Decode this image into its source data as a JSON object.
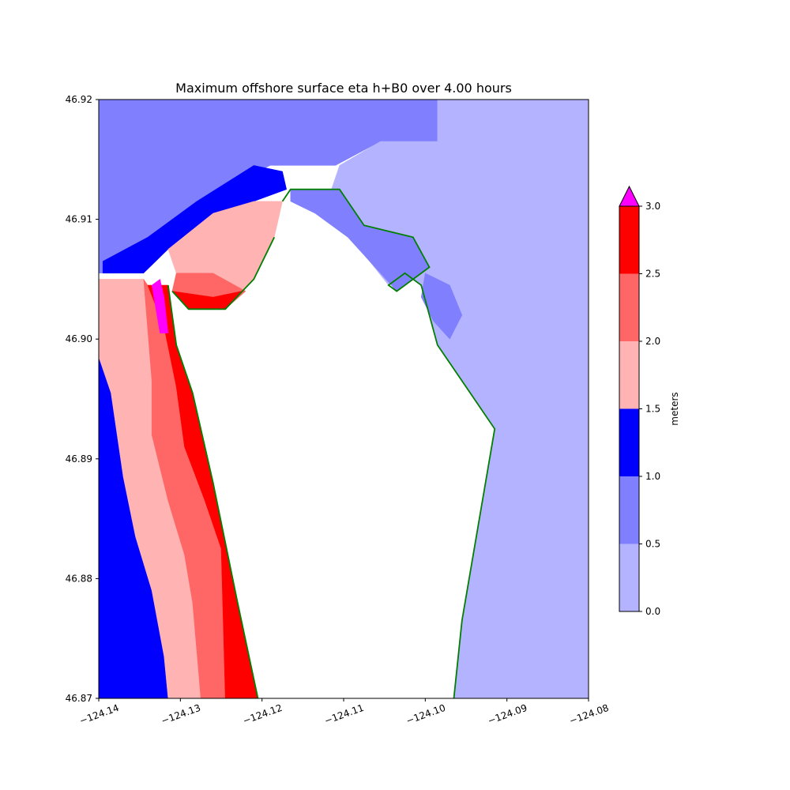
{
  "chart_data": {
    "type": "heatmap",
    "title": "Maximum offshore surface eta h+B0 over 4.00 hours",
    "xlabel": "",
    "ylabel": "",
    "xlim": [
      -124.14,
      -124.08
    ],
    "ylim": [
      46.87,
      46.92
    ],
    "x_ticks": [
      {
        "value": -124.14,
        "label": "−124.14"
      },
      {
        "value": -124.13,
        "label": "−124.13"
      },
      {
        "value": -124.12,
        "label": "−124.12"
      },
      {
        "value": -124.11,
        "label": "−124.11"
      },
      {
        "value": -124.1,
        "label": "−124.10"
      },
      {
        "value": -124.09,
        "label": "−124.09"
      },
      {
        "value": -124.08,
        "label": "−124.08"
      }
    ],
    "y_ticks": [
      {
        "value": 46.92,
        "label": "46.92"
      },
      {
        "value": 46.91,
        "label": "46.91"
      },
      {
        "value": 46.9,
        "label": "46.90"
      },
      {
        "value": 46.89,
        "label": "46.89"
      },
      {
        "value": 46.88,
        "label": "46.88"
      },
      {
        "value": 46.87,
        "label": "46.87"
      }
    ],
    "grid": false,
    "colorbar": {
      "label": "meters",
      "extend": "max",
      "over_color": "#ff00ff",
      "levels": [
        {
          "from": 0.0,
          "to": 0.5,
          "color": "#b3b3ff"
        },
        {
          "from": 0.5,
          "to": 1.0,
          "color": "#8080ff"
        },
        {
          "from": 1.0,
          "to": 1.5,
          "color": "#0000ff"
        },
        {
          "from": 1.5,
          "to": 2.0,
          "color": "#ffb3b3"
        },
        {
          "from": 2.0,
          "to": 2.5,
          "color": "#ff6666"
        },
        {
          "from": 2.5,
          "to": 3.0,
          "color": "#ff0000"
        }
      ],
      "tick_labels": [
        {
          "value": 0.0,
          "label": "0.0"
        },
        {
          "value": 0.5,
          "label": "0.5"
        },
        {
          "value": 1.0,
          "label": "1.0"
        },
        {
          "value": 1.5,
          "label": "1.5"
        },
        {
          "value": 2.0,
          "label": "2.0"
        },
        {
          "value": 2.5,
          "label": "2.5"
        },
        {
          "value": 3.0,
          "label": "3.0"
        }
      ]
    },
    "shoreline_color": "#007f00",
    "regions": [
      {
        "name": "deep-offshore",
        "level": 0.5,
        "color": "#8080ff",
        "points": [
          [
            -124.14,
            46.92
          ],
          [
            -124.0985,
            46.92
          ],
          [
            -124.0985,
            46.9165
          ],
          [
            -124.1055,
            46.9165
          ],
          [
            -124.111,
            46.9145
          ],
          [
            -124.119,
            46.9145
          ],
          [
            -124.125,
            46.9125
          ],
          [
            -124.1315,
            46.9085
          ],
          [
            -124.138,
            46.9055
          ],
          [
            -124.14,
            46.9055
          ]
        ]
      },
      {
        "name": "northeast-shelf",
        "level": 0.0,
        "color": "#b3b3ff",
        "points": [
          [
            -124.0985,
            46.92
          ],
          [
            -124.08,
            46.92
          ],
          [
            -124.08,
            46.87
          ],
          [
            -124.0965,
            46.87
          ],
          [
            -124.0955,
            46.8765
          ],
          [
            -124.0915,
            46.8925
          ],
          [
            -124.0945,
            46.8955
          ],
          [
            -124.0985,
            46.8995
          ],
          [
            -124.1005,
            46.9045
          ],
          [
            -124.1025,
            46.9055
          ],
          [
            -124.1045,
            46.9045
          ],
          [
            -124.108,
            46.9075
          ],
          [
            -124.1095,
            46.9105
          ],
          [
            -124.1105,
            46.9115
          ],
          [
            -124.1115,
            46.9125
          ],
          [
            -124.1105,
            46.9145
          ],
          [
            -124.1055,
            46.9165
          ],
          [
            -124.0985,
            46.9165
          ]
        ]
      },
      {
        "name": "bay-mouth-band",
        "level": 0.5,
        "color": "#8080ff",
        "points": [
          [
            -124.1165,
            46.9125
          ],
          [
            -124.1105,
            46.9125
          ],
          [
            -124.1075,
            46.9095
          ],
          [
            -124.1015,
            46.9085
          ],
          [
            -124.0995,
            46.906
          ],
          [
            -124.1035,
            46.904
          ],
          [
            -124.1055,
            46.9055
          ],
          [
            -124.1095,
            46.9085
          ],
          [
            -124.1135,
            46.9105
          ],
          [
            -124.1165,
            46.9115
          ]
        ]
      },
      {
        "name": "bay-inner-arm",
        "level": 0.5,
        "color": "#8080ff",
        "points": [
          [
            -124.1,
            46.9055
          ],
          [
            -124.097,
            46.9045
          ],
          [
            -124.0955,
            46.902
          ],
          [
            -124.097,
            46.9
          ],
          [
            -124.099,
            46.9015
          ],
          [
            -124.1005,
            46.9035
          ]
        ]
      },
      {
        "name": "offshore-band-1-0",
        "level": 1.0,
        "color": "#0000ff",
        "points": [
          [
            -124.1395,
            46.9065
          ],
          [
            -124.134,
            46.9085
          ],
          [
            -124.128,
            46.9115
          ],
          [
            -124.121,
            46.9145
          ],
          [
            -124.1175,
            46.914
          ],
          [
            -124.117,
            46.9125
          ],
          [
            -124.121,
            46.9115
          ],
          [
            -124.126,
            46.9105
          ],
          [
            -124.1315,
            46.9075
          ],
          [
            -124.1345,
            46.9055
          ],
          [
            -124.1395,
            46.9055
          ]
        ]
      },
      {
        "name": "coastal-band-outer",
        "level": 1.0,
        "color": "#0000ff",
        "points": [
          [
            -124.14,
            46.8985
          ],
          [
            -124.1385,
            46.8955
          ],
          [
            -124.137,
            46.8885
          ],
          [
            -124.1355,
            46.8835
          ],
          [
            -124.1335,
            46.879
          ],
          [
            -124.132,
            46.8735
          ],
          [
            -124.1315,
            46.87
          ],
          [
            -124.14,
            46.87
          ]
        ]
      },
      {
        "name": "coastal-band-1-5",
        "level": 1.5,
        "color": "#ffb3b3",
        "points": [
          [
            -124.14,
            46.905
          ],
          [
            -124.1345,
            46.905
          ],
          [
            -124.1335,
            46.8965
          ],
          [
            -124.1335,
            46.892
          ],
          [
            -124.1315,
            46.8865
          ],
          [
            -124.1295,
            46.882
          ],
          [
            -124.1285,
            46.878
          ],
          [
            -124.1275,
            46.87
          ],
          [
            -124.1315,
            46.87
          ],
          [
            -124.132,
            46.8735
          ],
          [
            -124.1335,
            46.879
          ],
          [
            -124.1355,
            46.8835
          ],
          [
            -124.137,
            46.8885
          ],
          [
            -124.1385,
            46.8955
          ],
          [
            -124.14,
            46.8985
          ]
        ]
      },
      {
        "name": "coastal-band-2-0",
        "level": 2.0,
        "color": "#ff6666",
        "points": [
          [
            -124.1345,
            46.905
          ],
          [
            -124.134,
            46.9045
          ],
          [
            -124.132,
            46.901
          ],
          [
            -124.1305,
            46.896
          ],
          [
            -124.1295,
            46.891
          ],
          [
            -124.127,
            46.8865
          ],
          [
            -124.125,
            46.8825
          ],
          [
            -124.1245,
            46.87
          ],
          [
            -124.1275,
            46.87
          ],
          [
            -124.1285,
            46.878
          ],
          [
            -124.1295,
            46.882
          ],
          [
            -124.1315,
            46.8865
          ],
          [
            -124.1335,
            46.892
          ],
          [
            -124.1335,
            46.8965
          ]
        ]
      },
      {
        "name": "coastal-band-2-5",
        "level": 2.5,
        "color": "#ff0000",
        "points": [
          [
            -124.134,
            46.9045
          ],
          [
            -124.1315,
            46.9045
          ],
          [
            -124.1305,
            46.8995
          ],
          [
            -124.1285,
            46.8955
          ],
          [
            -124.126,
            46.888
          ],
          [
            -124.123,
            46.878
          ],
          [
            -124.1205,
            46.87
          ],
          [
            -124.1245,
            46.87
          ],
          [
            -124.125,
            46.8825
          ],
          [
            -124.127,
            46.8865
          ],
          [
            -124.1295,
            46.891
          ],
          [
            -124.1305,
            46.896
          ],
          [
            -124.132,
            46.901
          ]
        ]
      },
      {
        "name": "spit-pink",
        "level": 1.5,
        "color": "#ffb3b3",
        "points": [
          [
            -124.1315,
            46.9075
          ],
          [
            -124.126,
            46.9105
          ],
          [
            -124.121,
            46.9115
          ],
          [
            -124.1175,
            46.9115
          ],
          [
            -124.1185,
            46.9085
          ],
          [
            -124.121,
            46.905
          ],
          [
            -124.1245,
            46.9025
          ],
          [
            -124.129,
            46.9025
          ],
          [
            -124.131,
            46.904
          ],
          [
            -124.1305,
            46.9055
          ]
        ]
      },
      {
        "name": "spit-red",
        "level": 2.0,
        "color": "#ff6666",
        "points": [
          [
            -124.1305,
            46.9055
          ],
          [
            -124.126,
            46.9055
          ],
          [
            -124.122,
            46.904
          ],
          [
            -124.1245,
            46.9025
          ],
          [
            -124.129,
            46.9025
          ],
          [
            -124.131,
            46.904
          ]
        ]
      },
      {
        "name": "spit-red-tip",
        "level": 2.5,
        "color": "#ff0000",
        "points": [
          [
            -124.131,
            46.904
          ],
          [
            -124.126,
            46.9035
          ],
          [
            -124.1225,
            46.904
          ],
          [
            -124.1245,
            46.9025
          ],
          [
            -124.129,
            46.9025
          ]
        ]
      },
      {
        "name": "max-patch",
        "level": 3.0,
        "color": "#ff00ff",
        "points": [
          [
            -124.1335,
            46.9045
          ],
          [
            -124.1325,
            46.905
          ],
          [
            -124.132,
            46.9035
          ],
          [
            -124.1315,
            46.9005
          ],
          [
            -124.1325,
            46.9005
          ]
        ]
      }
    ]
  }
}
